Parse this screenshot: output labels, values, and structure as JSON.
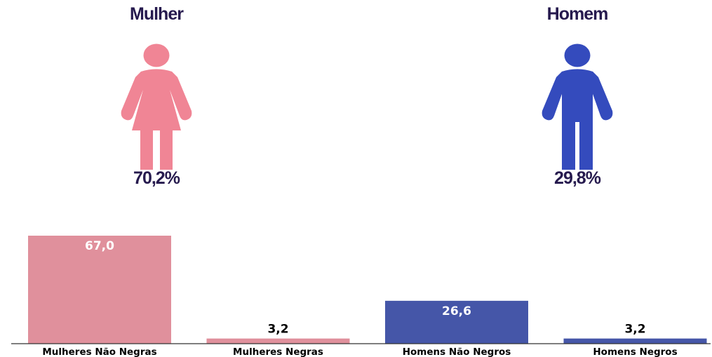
{
  "panels": [
    {
      "title": "Mulher",
      "percent": "70,2%",
      "icon": "female-person-icon",
      "color": "#f08595"
    },
    {
      "title": "Homem",
      "percent": "29,8%",
      "icon": "male-person-icon",
      "color": "#344bbd"
    }
  ],
  "chart_data": {
    "type": "bar",
    "categories": [
      "Mulheres Não Negras",
      "Mulheres Negras",
      "Homens Não Negros",
      "Homens Negros"
    ],
    "values": [
      67.0,
      3.2,
      26.6,
      3.2
    ],
    "value_labels": [
      "67,0",
      "3,2",
      "26,6",
      "3,2"
    ],
    "colors": [
      "#e0909c",
      "#e0909c",
      "#4556a8",
      "#4556a8"
    ],
    "title": "",
    "xlabel": "",
    "ylabel": "",
    "ylim": [
      0,
      67.0
    ],
    "grid": false
  }
}
